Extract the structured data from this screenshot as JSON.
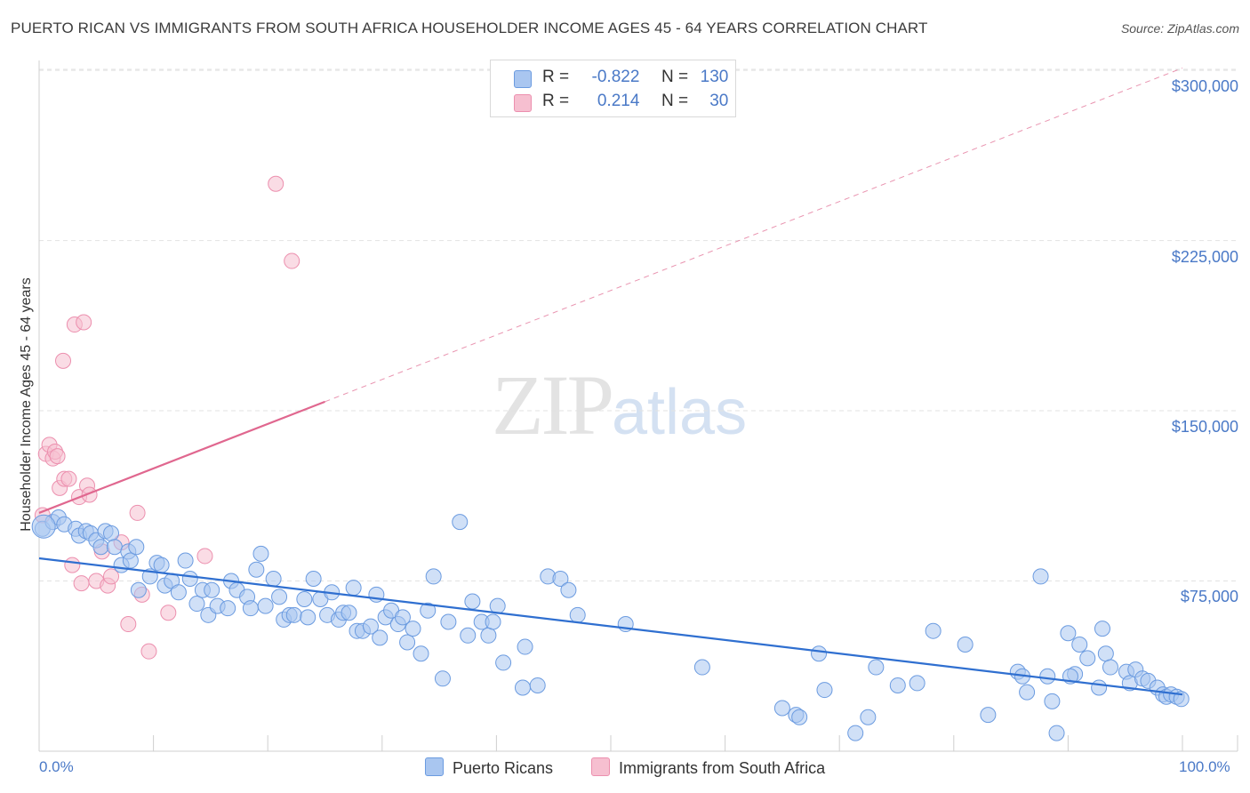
{
  "title": "PUERTO RICAN VS IMMIGRANTS FROM SOUTH AFRICA HOUSEHOLDER INCOME AGES 45 - 64 YEARS CORRELATION CHART",
  "source": "Source: ZipAtlas.com",
  "watermark": {
    "zip": "ZIP",
    "atlas": "atlas"
  },
  "legend": {
    "rows": [
      {
        "r_label": "R =",
        "r_value": "-0.822",
        "n_label": "N =",
        "n_value": "130"
      },
      {
        "r_label": "R =",
        "r_value": "0.214",
        "n_label": "N =",
        "n_value": "30"
      }
    ]
  },
  "colors": {
    "blue_fill": "#a9c6f0",
    "blue_stroke": "#6b9be0",
    "blue_line": "#2f6fd0",
    "pink_fill": "#f6bfd0",
    "pink_stroke": "#ec8fae",
    "pink_line": "#e0678f",
    "tick_text": "#4a79c7",
    "grid": "#e2e2e2"
  },
  "chart_data": {
    "type": "scatter",
    "title": "PUERTO RICAN VS IMMIGRANTS FROM SOUTH AFRICA HOUSEHOLDER INCOME AGES 45 - 64 YEARS CORRELATION CHART",
    "xlabel": "",
    "ylabel": "Householder Income Ages 45 - 64 years",
    "xlim": [
      0,
      100
    ],
    "ylim": [
      0,
      310000
    ],
    "x_tick_labels": [
      "0.0%",
      "100.0%"
    ],
    "y_ticks": [
      75000,
      150000,
      225000,
      300000
    ],
    "y_tick_labels": [
      "$75,000",
      "$150,000",
      "$225,000",
      "$300,000"
    ],
    "grid": true,
    "legend_position": "top-center",
    "series": [
      {
        "name": "Puerto Ricans",
        "color": "#a9c6f0",
        "r": -0.822,
        "n": 130,
        "trend": {
          "x": [
            0,
            100
          ],
          "y": [
            85000,
            25000
          ]
        },
        "points": [
          [
            0.3,
            98000
          ],
          [
            1.2,
            101000
          ],
          [
            1.7,
            103000
          ],
          [
            2.2,
            100000
          ],
          [
            3.2,
            98000
          ],
          [
            3.5,
            95000
          ],
          [
            4.1,
            97000
          ],
          [
            4.5,
            96000
          ],
          [
            5.0,
            93000
          ],
          [
            5.4,
            90000
          ],
          [
            5.8,
            97000
          ],
          [
            6.3,
            96000
          ],
          [
            6.6,
            90000
          ],
          [
            7.2,
            82000
          ],
          [
            7.8,
            88000
          ],
          [
            8.0,
            84000
          ],
          [
            8.5,
            90000
          ],
          [
            8.7,
            71000
          ],
          [
            9.7,
            77000
          ],
          [
            10.3,
            83000
          ],
          [
            10.7,
            82000
          ],
          [
            11.0,
            73000
          ],
          [
            11.6,
            75000
          ],
          [
            12.2,
            70000
          ],
          [
            12.8,
            84000
          ],
          [
            13.2,
            76000
          ],
          [
            13.8,
            65000
          ],
          [
            14.3,
            71000
          ],
          [
            14.8,
            60000
          ],
          [
            15.1,
            71000
          ],
          [
            15.6,
            64000
          ],
          [
            16.5,
            63000
          ],
          [
            16.8,
            75000
          ],
          [
            17.3,
            71000
          ],
          [
            18.2,
            68000
          ],
          [
            18.5,
            63000
          ],
          [
            19.0,
            80000
          ],
          [
            19.4,
            87000
          ],
          [
            19.8,
            64000
          ],
          [
            20.5,
            76000
          ],
          [
            21.0,
            68000
          ],
          [
            21.4,
            58000
          ],
          [
            21.9,
            60000
          ],
          [
            22.3,
            60000
          ],
          [
            23.2,
            67000
          ],
          [
            23.5,
            59000
          ],
          [
            24.0,
            76000
          ],
          [
            24.6,
            67000
          ],
          [
            25.2,
            60000
          ],
          [
            25.6,
            70000
          ],
          [
            26.2,
            58000
          ],
          [
            26.6,
            61000
          ],
          [
            27.1,
            61000
          ],
          [
            27.5,
            72000
          ],
          [
            27.8,
            53000
          ],
          [
            28.3,
            53000
          ],
          [
            29.0,
            55000
          ],
          [
            29.5,
            69000
          ],
          [
            29.8,
            50000
          ],
          [
            30.3,
            59000
          ],
          [
            30.8,
            62000
          ],
          [
            31.4,
            56000
          ],
          [
            31.8,
            59000
          ],
          [
            32.2,
            48000
          ],
          [
            32.7,
            54000
          ],
          [
            33.4,
            43000
          ],
          [
            34.0,
            62000
          ],
          [
            34.5,
            77000
          ],
          [
            35.3,
            32000
          ],
          [
            35.8,
            57000
          ],
          [
            36.8,
            101000
          ],
          [
            37.5,
            51000
          ],
          [
            37.9,
            66000
          ],
          [
            38.7,
            57000
          ],
          [
            39.3,
            51000
          ],
          [
            39.7,
            57000
          ],
          [
            40.1,
            64000
          ],
          [
            40.6,
            39000
          ],
          [
            42.3,
            28000
          ],
          [
            42.5,
            46000
          ],
          [
            43.6,
            29000
          ],
          [
            44.5,
            77000
          ],
          [
            45.6,
            76000
          ],
          [
            46.3,
            71000
          ],
          [
            47.1,
            60000
          ],
          [
            51.3,
            56000
          ],
          [
            58.0,
            37000
          ],
          [
            65.0,
            19000
          ],
          [
            66.2,
            16000
          ],
          [
            66.5,
            15000
          ],
          [
            68.2,
            43000
          ],
          [
            68.7,
            27000
          ],
          [
            71.4,
            8000
          ],
          [
            72.5,
            15000
          ],
          [
            73.2,
            37000
          ],
          [
            75.1,
            29000
          ],
          [
            76.8,
            30000
          ],
          [
            78.2,
            53000
          ],
          [
            81.0,
            47000
          ],
          [
            83.0,
            16000
          ],
          [
            85.6,
            35000
          ],
          [
            86.0,
            33000
          ],
          [
            86.4,
            26000
          ],
          [
            87.6,
            77000
          ],
          [
            88.2,
            33000
          ],
          [
            88.6,
            22000
          ],
          [
            89.0,
            8000
          ],
          [
            90.0,
            52000
          ],
          [
            90.6,
            34000
          ],
          [
            90.2,
            33000
          ],
          [
            91.0,
            47000
          ],
          [
            91.7,
            41000
          ],
          [
            92.7,
            28000
          ],
          [
            93.0,
            54000
          ],
          [
            93.3,
            43000
          ],
          [
            93.7,
            37000
          ],
          [
            95.1,
            35000
          ],
          [
            95.4,
            30000
          ],
          [
            95.9,
            36000
          ],
          [
            96.5,
            32000
          ],
          [
            97.0,
            31000
          ],
          [
            97.8,
            28000
          ],
          [
            98.3,
            25000
          ],
          [
            98.6,
            24000
          ],
          [
            99.0,
            25000
          ],
          [
            99.5,
            24000
          ],
          [
            99.9,
            23000
          ]
        ]
      },
      {
        "name": "Immigrants from South Africa",
        "color": "#f6bfd0",
        "r": 0.214,
        "n": 30,
        "trend": {
          "x": [
            0,
            25
          ],
          "y": [
            105000,
            154000
          ]
        },
        "trend_dashed": {
          "x": [
            25,
            100
          ],
          "y": [
            154000,
            301000
          ]
        },
        "points": [
          [
            0.3,
            104000
          ],
          [
            0.6,
            131000
          ],
          [
            0.9,
            135000
          ],
          [
            1.2,
            129000
          ],
          [
            1.4,
            132000
          ],
          [
            1.6,
            130000
          ],
          [
            1.8,
            116000
          ],
          [
            2.1,
            172000
          ],
          [
            2.2,
            120000
          ],
          [
            2.6,
            120000
          ],
          [
            2.9,
            82000
          ],
          [
            3.1,
            188000
          ],
          [
            3.5,
            112000
          ],
          [
            3.7,
            74000
          ],
          [
            3.9,
            189000
          ],
          [
            4.2,
            117000
          ],
          [
            4.4,
            113000
          ],
          [
            5.0,
            75000
          ],
          [
            5.5,
            88000
          ],
          [
            6.0,
            73000
          ],
          [
            6.3,
            77000
          ],
          [
            7.2,
            92000
          ],
          [
            7.8,
            56000
          ],
          [
            8.6,
            105000
          ],
          [
            9.0,
            69000
          ],
          [
            9.6,
            44000
          ],
          [
            11.3,
            61000
          ],
          [
            14.5,
            86000
          ],
          [
            20.7,
            250000
          ],
          [
            22.1,
            216000
          ]
        ]
      }
    ]
  }
}
